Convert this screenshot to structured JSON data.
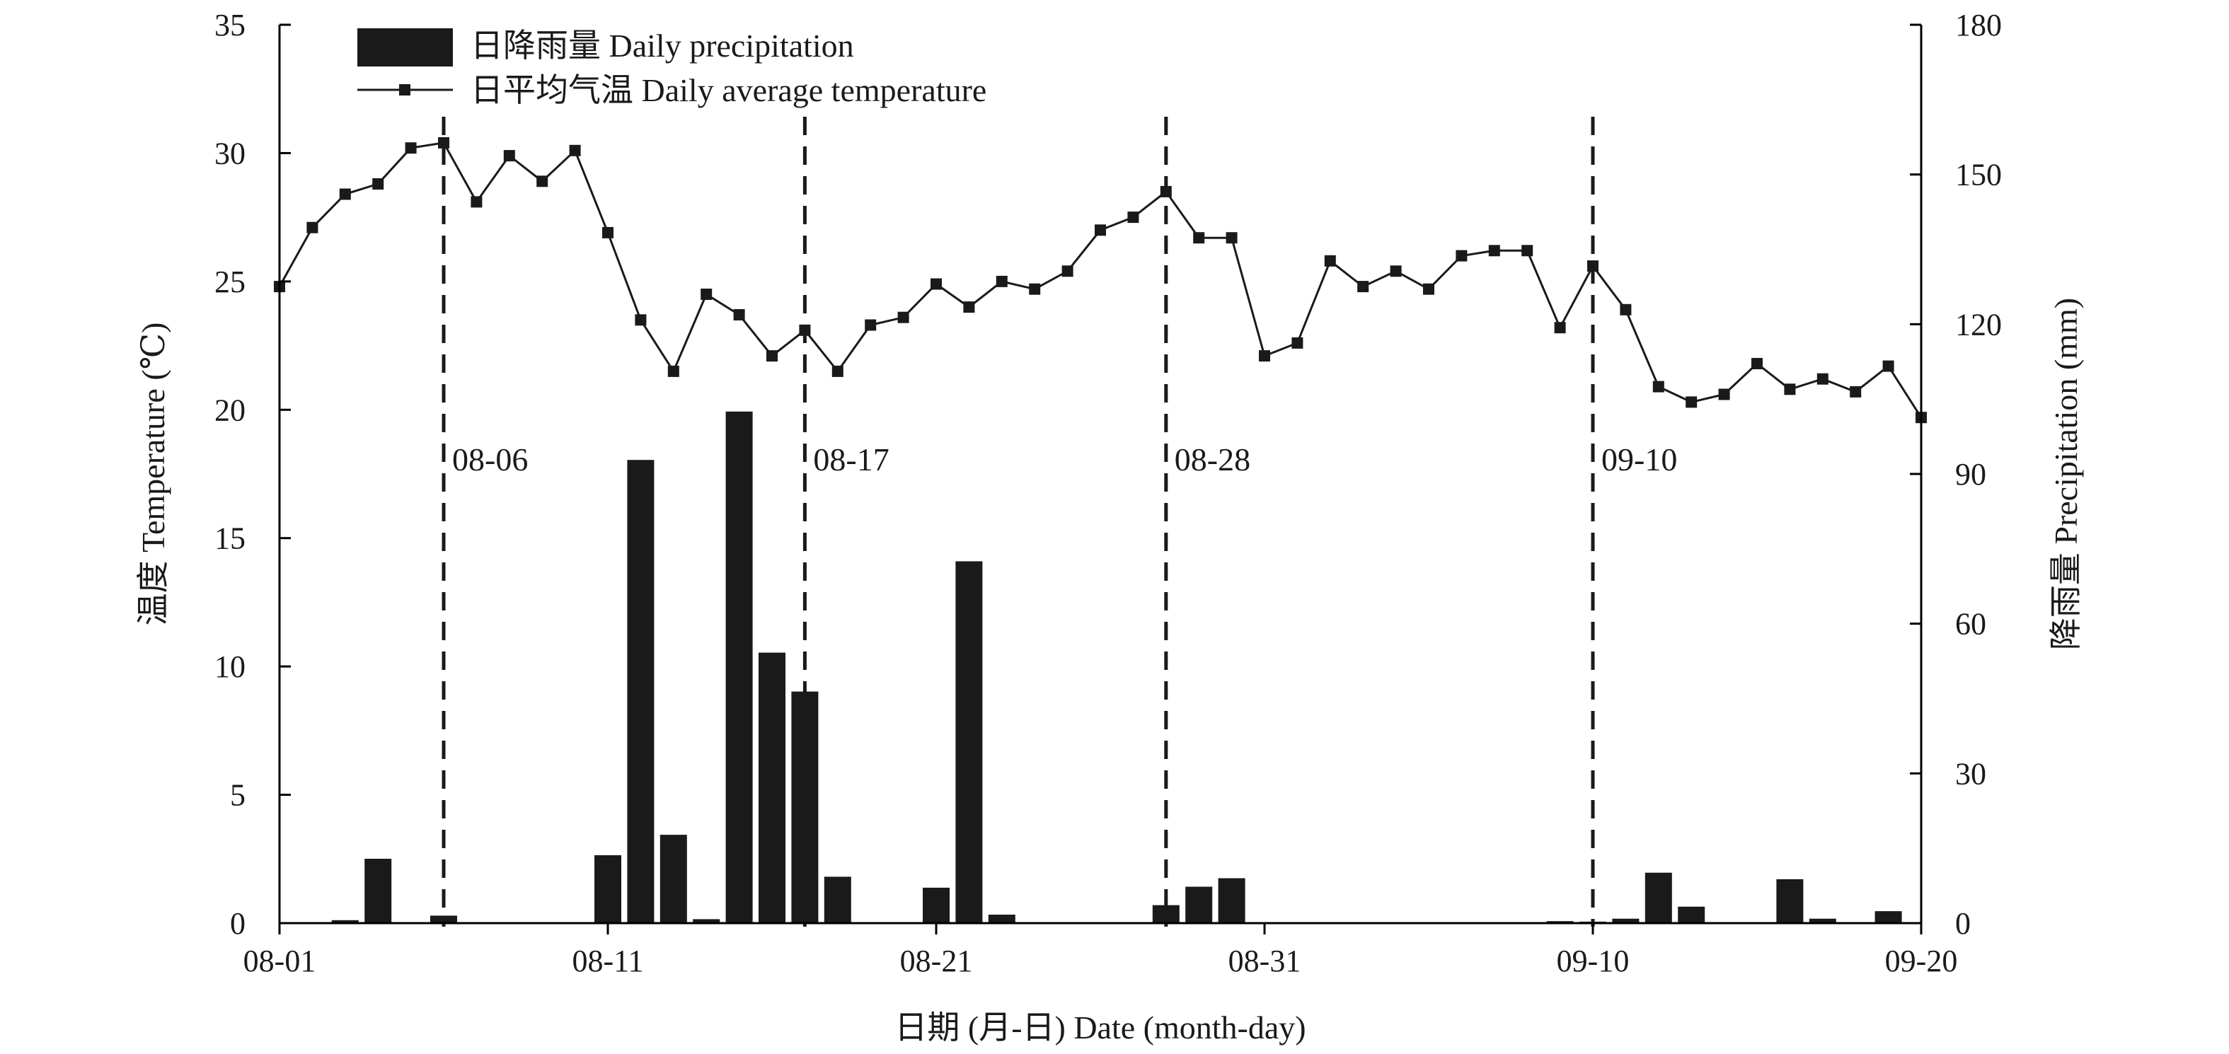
{
  "chart_data": {
    "type": "bar+line",
    "xlabel": "日期 (月-日) Date (month-day)",
    "ylabel_left": "温度 Temperature (℃)",
    "ylabel_right": "降雨量 Precipitation (mm)",
    "x_ticks": [
      {
        "day": 0,
        "label": "08-01"
      },
      {
        "day": 10,
        "label": "08-11"
      },
      {
        "day": 20,
        "label": "08-21"
      },
      {
        "day": 30,
        "label": "08-31"
      },
      {
        "day": 40,
        "label": "09-10"
      },
      {
        "day": 50,
        "label": "09-20"
      }
    ],
    "xlim": [
      0,
      50
    ],
    "ylim_left": [
      0,
      35
    ],
    "yticks_left": [
      0,
      5,
      10,
      15,
      20,
      25,
      30,
      35
    ],
    "ylim_right": [
      0,
      180
    ],
    "yticks_right": [
      0,
      30,
      60,
      90,
      120,
      150,
      180
    ],
    "legend": {
      "placement": "top-left",
      "entries": [
        {
          "label": "日降雨量 Daily precipitation",
          "kind": "bar"
        },
        {
          "label": "日平均气温 Daily average temperature",
          "kind": "line-marker"
        }
      ]
    },
    "grid": false,
    "colors": {
      "bars": "#1a1a1a",
      "line": "#1a1a1a"
    },
    "series": [
      {
        "name": "日平均气温 Daily average temperature",
        "axis": "left",
        "type": "line",
        "x": [
          0,
          1,
          2,
          3,
          4,
          5,
          6,
          7,
          8,
          9,
          10,
          11,
          12,
          13,
          14,
          15,
          16,
          17,
          18,
          19,
          20,
          21,
          22,
          23,
          24,
          25,
          26,
          27,
          28,
          29,
          30,
          31,
          32,
          33,
          34,
          35,
          36,
          37,
          38,
          39,
          40,
          41,
          42,
          43,
          44,
          45,
          46,
          47,
          48,
          49,
          50
        ],
        "values": [
          24.8,
          27.1,
          28.4,
          28.8,
          30.2,
          30.4,
          28.1,
          29.9,
          28.9,
          30.1,
          26.9,
          23.5,
          21.5,
          24.5,
          23.7,
          22.1,
          23.1,
          21.5,
          23.3,
          23.6,
          24.9,
          24.0,
          25.0,
          24.7,
          25.4,
          27.0,
          27.5,
          28.5,
          26.7,
          26.7,
          22.1,
          22.6,
          25.8,
          24.8,
          25.4,
          24.7,
          26.0,
          26.2,
          26.2,
          23.2,
          25.6,
          23.9,
          20.9,
          20.3,
          20.6,
          21.8,
          20.8,
          21.2,
          20.7,
          21.7,
          19.7
        ]
      },
      {
        "name": "日降雨量 Daily precipitation",
        "axis": "right",
        "type": "bar",
        "x": [
          2,
          3,
          5,
          10,
          11,
          12,
          13,
          14,
          15,
          16,
          17,
          20,
          21,
          22,
          27,
          28,
          29,
          39,
          40,
          41,
          42,
          43,
          46,
          47,
          49
        ],
        "values": [
          0.6,
          12.9,
          1.5,
          13.6,
          92.8,
          17.7,
          0.8,
          102.5,
          54.2,
          46.4,
          9.3,
          7.1,
          72.5,
          1.7,
          3.6,
          7.3,
          9.0,
          0.4,
          0.3,
          0.9,
          10.1,
          3.3,
          8.8,
          0.9,
          2.4
        ]
      }
    ],
    "annotations": [
      {
        "day": 5,
        "label": "08-06",
        "style": "dashed-vertical"
      },
      {
        "day": 16,
        "label": "08-17",
        "style": "dashed-vertical"
      },
      {
        "day": 27,
        "label": "08-28",
        "style": "dashed-vertical"
      },
      {
        "day": 40,
        "label": "09-10",
        "style": "dashed-vertical"
      }
    ]
  }
}
